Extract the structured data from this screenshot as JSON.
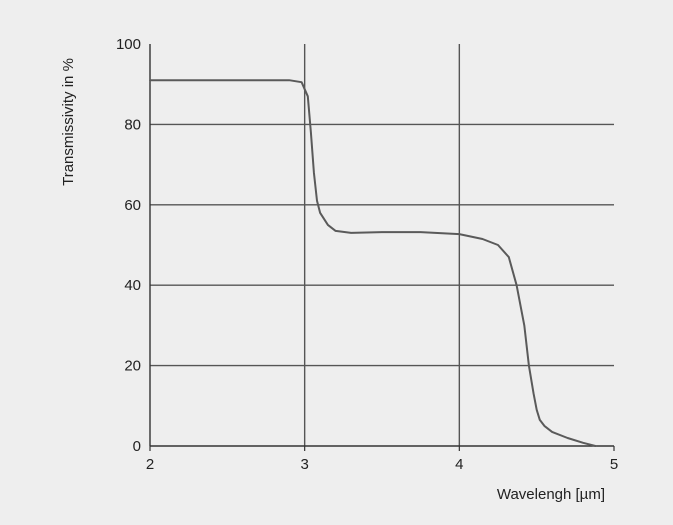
{
  "chart_data": {
    "type": "line",
    "xlabel": "Wavelengh [µm]",
    "ylabel": "Transmissivity in %",
    "xlim": [
      2,
      5
    ],
    "ylim": [
      0,
      100
    ],
    "x_ticks": [
      2,
      3,
      4,
      5
    ],
    "y_ticks": [
      0,
      20,
      40,
      60,
      80,
      100
    ],
    "grid": true,
    "series": [
      {
        "x": [
          2.0,
          2.5,
          2.9,
          2.98,
          3.02,
          3.04,
          3.06,
          3.08,
          3.1,
          3.15,
          3.2,
          3.3,
          3.5,
          3.75,
          4.0,
          4.15,
          4.25,
          4.32,
          4.37,
          4.42,
          4.45,
          4.48,
          4.5,
          4.52,
          4.55,
          4.6,
          4.7,
          4.8,
          4.88
        ],
        "y": [
          91,
          91,
          91,
          90.5,
          87,
          78,
          68,
          61,
          58,
          55,
          53.5,
          53,
          53.2,
          53.2,
          52.7,
          51.5,
          50,
          47,
          40,
          30,
          20,
          13,
          9,
          6.5,
          5,
          3.5,
          2,
          0.8,
          0
        ]
      }
    ],
    "colors": {
      "line": "#5a5a5a",
      "grid": "#555555",
      "background": "#eeeeee"
    }
  }
}
